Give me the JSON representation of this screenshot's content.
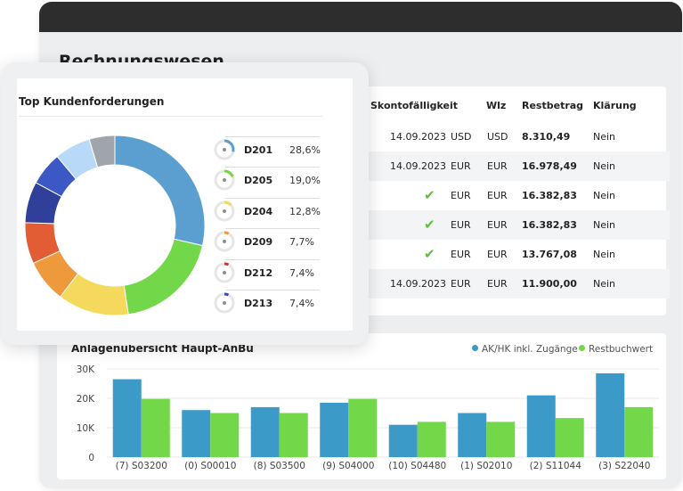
{
  "page": {
    "title": "Rechnungswesen"
  },
  "table": {
    "headers": [
      "Skontofälligkeit",
      "Wlz",
      "Restbetrag",
      "Klärung"
    ],
    "rows": [
      {
        "skonto": "14.09.2023",
        "currency": "USD",
        "wlz": "USD",
        "amount": "8.310,49",
        "klaerung": "Nein",
        "check": false
      },
      {
        "skonto": "14.09.2023",
        "currency": "EUR",
        "wlz": "EUR",
        "amount": "16.978,49",
        "klaerung": "Nein",
        "check": false
      },
      {
        "skonto": "",
        "currency": "EUR",
        "wlz": "EUR",
        "amount": "16.382,83",
        "klaerung": "Nein",
        "check": true
      },
      {
        "skonto": "",
        "currency": "EUR",
        "wlz": "EUR",
        "amount": "16.382,83",
        "klaerung": "Nein",
        "check": true
      },
      {
        "skonto": "",
        "currency": "EUR",
        "wlz": "EUR",
        "amount": "13.767,08",
        "klaerung": "Nein",
        "check": true
      },
      {
        "skonto": "14.09.2023",
        "currency": "EUR",
        "wlz": "EUR",
        "amount": "11.900,00",
        "klaerung": "Nein",
        "check": false
      }
    ]
  },
  "chart_data": [
    {
      "type": "pie",
      "title": "Top Kundenforderungen",
      "categories": [
        "D201",
        "D205",
        "D204",
        "D209",
        "D212",
        "D213"
      ],
      "values": [
        28.6,
        19.0,
        12.8,
        7.7,
        7.4,
        7.4
      ],
      "labels": [
        "28,6%",
        "19,0%",
        "12,8%",
        "7,7%",
        "7,4%",
        "7,4%"
      ],
      "colors": [
        "#5a9fd0",
        "#72d84a",
        "#f5d95c",
        "#ee9a3c",
        "#e25c34",
        "#2f3f9a"
      ],
      "extra_segments": [
        {
          "value": 6.0,
          "color": "#3b58c4"
        },
        {
          "value": 6.5,
          "color": "#b9d9f8"
        },
        {
          "value": 4.6,
          "color": "#a0a4ab"
        }
      ],
      "legend_colors": [
        "#5a9fd0",
        "#72d84a",
        "#f5d95c",
        "#ee9a3c",
        "#d8322c",
        "#2f48c8"
      ]
    },
    {
      "type": "bar",
      "title": "Anlagenübersicht Haupt-AnBu",
      "categories": [
        "(7) S03200",
        "(0) S00010",
        "(8) S03500",
        "(9) S04000",
        "(10) S04480",
        "(1) S02010",
        "(2) S11044",
        "(3) S22040"
      ],
      "series": [
        {
          "name": "AK/HK inkl. Zugänge",
          "color": "#3b9ac8",
          "values": [
            26500,
            16000,
            17000,
            18500,
            11000,
            15000,
            21000,
            28500
          ]
        },
        {
          "name": "Restbuchwert",
          "color": "#72d84a",
          "values": [
            19800,
            15000,
            15000,
            19800,
            12000,
            12000,
            13300,
            17000
          ]
        }
      ],
      "ylim": [
        0,
        30000
      ],
      "yticks": [
        "0",
        "10K",
        "20K",
        "30K"
      ],
      "legend_position": "top-right",
      "grid": true
    }
  ]
}
